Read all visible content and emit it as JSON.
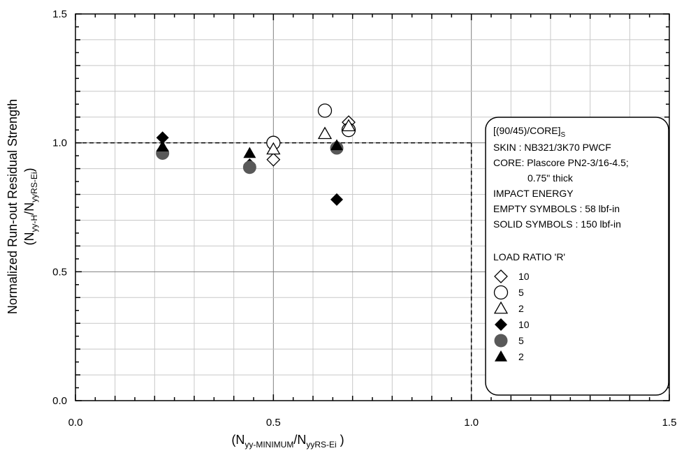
{
  "chart_data": {
    "type": "scatter",
    "xlabel": {
      "main": "(N",
      "sub1": "yy-MINIMUM",
      "mid": "/N",
      "sub2": "yyRS-Ei",
      "end": " )"
    },
    "ylabel": {
      "line1": "Normalized Run-out Residual Strength",
      "line2_main": "(N",
      "line2_sub1": "yy-H",
      "line2_mid": "/N",
      "line2_sub2": "yyRS-Ei",
      "line2_end": ")"
    },
    "xlim": [
      0.0,
      1.5
    ],
    "ylim": [
      0.0,
      1.5
    ],
    "x_ticks": [
      "0.0",
      "0.5",
      "1.0",
      "1.5"
    ],
    "y_ticks": [
      "0.0",
      "0.5",
      "1.0",
      "1.5"
    ],
    "grid": true,
    "reference_lines": {
      "y": 1.0,
      "x": 1.0
    },
    "series": [
      {
        "marker": "diamond",
        "filled": false,
        "color": "#000000",
        "points": [
          [
            0.5,
            0.935
          ],
          [
            0.69,
            1.08
          ],
          [
            0.69,
            1.055
          ]
        ]
      },
      {
        "marker": "circle",
        "filled": false,
        "color": "#000000",
        "points": [
          [
            0.5,
            1.0
          ],
          [
            0.63,
            1.125
          ],
          [
            0.69,
            1.05
          ]
        ]
      },
      {
        "marker": "triangle",
        "filled": false,
        "color": "#000000",
        "points": [
          [
            0.5,
            0.975
          ],
          [
            0.63,
            1.035
          ],
          [
            0.69,
            1.065
          ]
        ]
      },
      {
        "marker": "diamond",
        "filled": true,
        "color": "#000000",
        "points": [
          [
            0.22,
            1.02
          ],
          [
            0.44,
            0.915
          ],
          [
            0.66,
            0.78
          ]
        ]
      },
      {
        "marker": "circle",
        "filled": true,
        "color": "#595959",
        "points": [
          [
            0.22,
            0.96
          ],
          [
            0.44,
            0.905
          ],
          [
            0.66,
            0.98
          ]
        ]
      },
      {
        "marker": "triangle",
        "filled": true,
        "color": "#000000",
        "points": [
          [
            0.22,
            0.985
          ],
          [
            0.44,
            0.96
          ],
          [
            0.66,
            0.99
          ]
        ]
      }
    ],
    "legend": {
      "placement": "right",
      "header": {
        "prefix": "[(90/45)/CORE]",
        "sub": "S"
      },
      "lines": [
        "SKIN : NB321/3K70 PWCF",
        "CORE: Plascore PN2-3/16-4.5;",
        "0.75\" thick",
        "IMPACT ENERGY",
        "EMPTY SYMBOLS : 58 lbf-in",
        "SOLID SYMBOLS : 150 lbf-in"
      ],
      "ratio_title": "LOAD RATIO 'R'",
      "entries": [
        {
          "marker": "diamond",
          "filled": false,
          "color": "#000000",
          "label": "10"
        },
        {
          "marker": "circle",
          "filled": false,
          "color": "#000000",
          "label": "5"
        },
        {
          "marker": "triangle",
          "filled": false,
          "color": "#000000",
          "label": "2"
        },
        {
          "marker": "diamond",
          "filled": true,
          "color": "#000000",
          "label": "10"
        },
        {
          "marker": "circle",
          "filled": true,
          "color": "#595959",
          "label": "5"
        },
        {
          "marker": "triangle",
          "filled": true,
          "color": "#000000",
          "label": "2"
        }
      ]
    }
  }
}
